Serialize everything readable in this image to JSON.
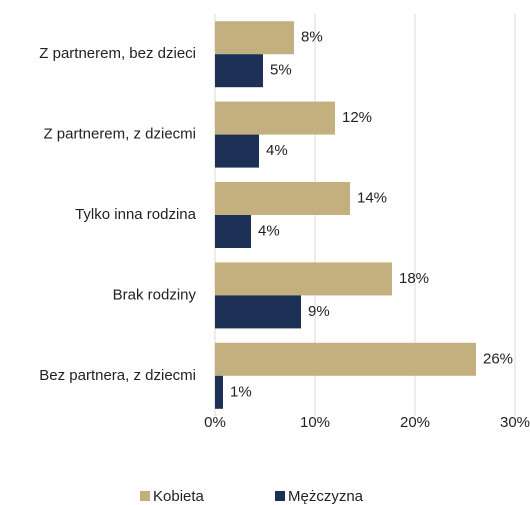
{
  "chart_data": {
    "type": "barh",
    "categories": [
      "Z partnerem, bez dzieci",
      "Z partnerem, z dziecmi",
      "Tylko inna rodzina",
      "Brak rodziny",
      "Bez partnera, z dziecmi"
    ],
    "series": [
      {
        "name": "Kobieta",
        "color": "#c4b07f",
        "values": [
          7.9,
          12.0,
          13.5,
          17.7,
          26.1
        ],
        "value_labels": [
          "8%",
          "12%",
          "14%",
          "18%",
          "26%"
        ]
      },
      {
        "name": "Mężczyzna",
        "color": "#1c2f55",
        "values": [
          4.8,
          4.4,
          3.6,
          8.6,
          0.8
        ],
        "value_labels": [
          "5%",
          "4%",
          "4%",
          "9%",
          "1%"
        ]
      }
    ],
    "xlim": [
      0,
      30
    ],
    "xticks": [
      {
        "value": 0,
        "label": "0%"
      },
      {
        "value": 10,
        "label": "10%"
      },
      {
        "value": 20,
        "label": "20%"
      },
      {
        "value": 30,
        "label": "30%"
      }
    ],
    "grid": true,
    "legend": "bottom"
  }
}
